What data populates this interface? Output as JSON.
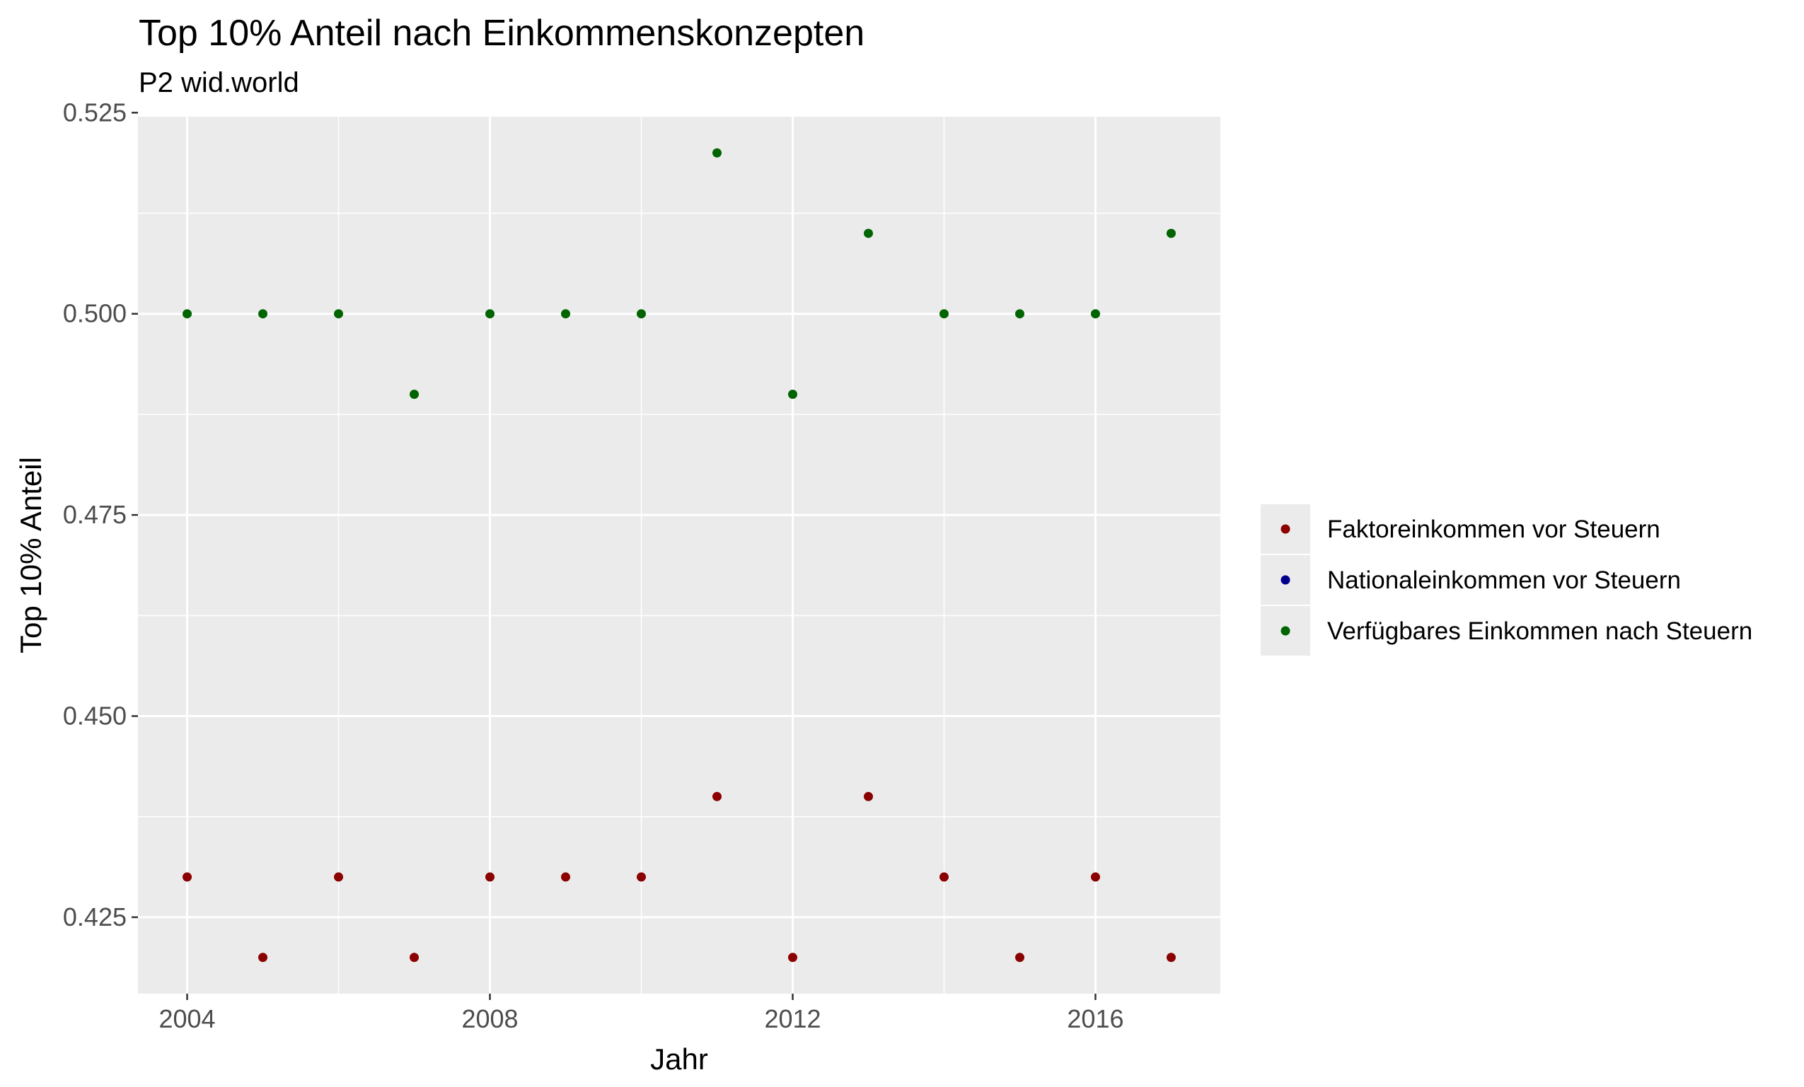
{
  "chart_data": {
    "type": "scatter",
    "title": "Top 10% Anteil nach Einkommenskonzepten",
    "subtitle": "P2 wid.world",
    "xlabel": "Jahr",
    "ylabel": "Top 10% Anteil",
    "xlim": [
      2003.35,
      2017.65
    ],
    "ylim": [
      0.4155,
      0.5245
    ],
    "x_ticks": [
      2004,
      2008,
      2012,
      2016
    ],
    "x_tick_labels": [
      "2004",
      "2008",
      "2012",
      "2016"
    ],
    "y_ticks": [
      0.425,
      0.45,
      0.475,
      0.5,
      0.525
    ],
    "y_tick_labels": [
      "0.425",
      "0.450",
      "0.475",
      "0.500",
      "0.525"
    ],
    "grid": true,
    "legend_position": "right",
    "x": [
      2004,
      2005,
      2006,
      2007,
      2008,
      2009,
      2010,
      2011,
      2012,
      2013,
      2014,
      2015,
      2016,
      2017
    ],
    "series": [
      {
        "name": "Faktoreinkommen vor Steuern",
        "color": "#8b0000",
        "values": [
          0.43,
          0.42,
          0.43,
          0.42,
          0.43,
          0.43,
          0.43,
          0.44,
          0.42,
          0.44,
          0.43,
          0.42,
          0.43,
          0.42
        ]
      },
      {
        "name": "Nationaleinkommen vor Steuern",
        "color": "#00008b",
        "values": []
      },
      {
        "name": "Verfügbares Einkommen nach Steuern",
        "color": "#006400",
        "values": [
          0.5,
          0.5,
          0.5,
          0.49,
          0.5,
          0.5,
          0.5,
          0.52,
          0.49,
          0.51,
          0.5,
          0.5,
          0.5,
          0.51
        ]
      }
    ]
  }
}
